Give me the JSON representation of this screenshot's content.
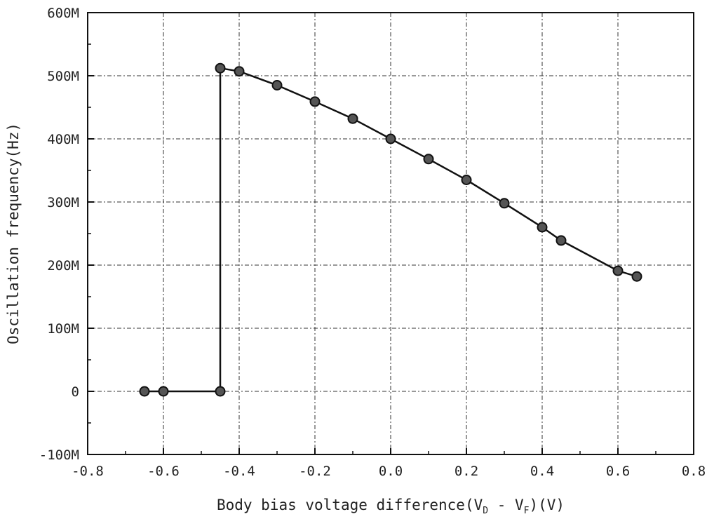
{
  "chart_data": {
    "type": "line",
    "xlabel": {
      "prefix": "Body bias voltage difference(V",
      "sub1": "D",
      "mid": " - V",
      "sub2": "F",
      "suffix": ")(V)"
    },
    "ylabel": "Oscillation frequency(Hz)",
    "xlim": [
      -0.8,
      0.8
    ],
    "ylim": [
      -100000000,
      600000000
    ],
    "x_ticks": [
      "-0.8",
      "-0.6",
      "-0.4",
      "-0.2",
      "0.0",
      "0.2",
      "0.4",
      "0.6",
      "0.8"
    ],
    "y_ticks": [
      "-100M",
      "0",
      "100M",
      "200M",
      "300M",
      "400M",
      "500M",
      "600M"
    ],
    "grid": true,
    "series": [
      {
        "x": [
          -0.65,
          -0.6,
          -0.45,
          -0.45,
          -0.4,
          -0.3,
          -0.2,
          -0.1,
          0.0,
          0.1,
          0.2,
          0.3,
          0.4,
          0.45,
          0.6,
          0.65
        ],
        "y": [
          0,
          0,
          0,
          512000000,
          507000000,
          485000000,
          459000000,
          432000000,
          400000000,
          368000000,
          335000000,
          298000000,
          260000000,
          239000000,
          191000000,
          182000000
        ]
      }
    ]
  }
}
